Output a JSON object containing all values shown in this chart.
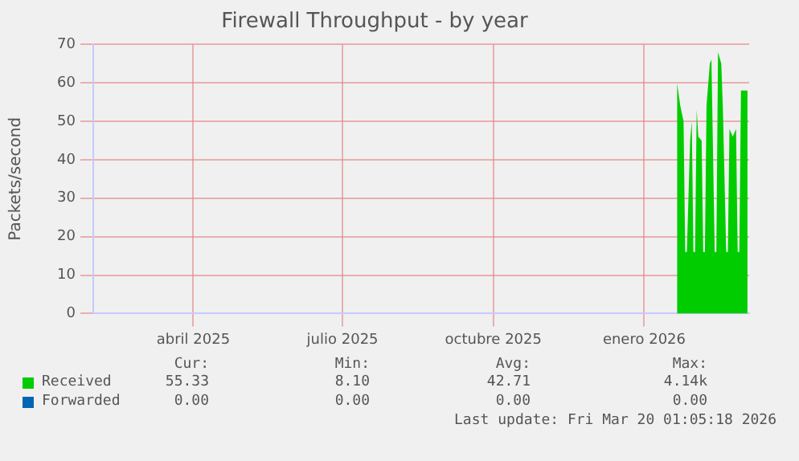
{
  "chart_data": {
    "type": "area",
    "title": "Firewall Throughput - by year",
    "ylabel": "Packets/second",
    "x": [
      "2026-02-04",
      "2026-02-06",
      "2026-02-08",
      "2026-02-09",
      "2026-02-10",
      "2026-02-12",
      "2026-02-13",
      "2026-02-14",
      "2026-02-15",
      "2026-02-16",
      "2026-02-17",
      "2026-02-19",
      "2026-02-20",
      "2026-02-21",
      "2026-02-22",
      "2026-02-24",
      "2026-02-25",
      "2026-02-27",
      "2026-02-28",
      "2026-03-01",
      "2026-03-03",
      "2026-03-04",
      "2026-03-06",
      "2026-03-07",
      "2026-03-08",
      "2026-03-10",
      "2026-03-12",
      "2026-03-13",
      "2026-03-14",
      "2026-03-15",
      "2026-03-17",
      "2026-03-19"
    ],
    "series": [
      {
        "name": "Received",
        "color": "#00cc00",
        "values": [
          60,
          54,
          50,
          16,
          16,
          45,
          50,
          16,
          16,
          53,
          46,
          45,
          16,
          16,
          54,
          65,
          66,
          16,
          16,
          68,
          65,
          53,
          16,
          16,
          48,
          46,
          48,
          16,
          16,
          58,
          58,
          58
        ]
      },
      {
        "name": "Forwarded",
        "color": "#0066b3",
        "values": [
          null,
          null,
          null,
          null,
          null,
          null,
          null,
          null,
          null,
          null,
          null,
          null,
          null,
          null,
          null,
          null,
          null,
          null,
          null,
          null,
          null,
          null,
          null,
          null,
          null,
          null,
          null,
          null,
          null,
          null,
          null,
          null
        ]
      }
    ],
    "xlim": [
      "2025-02-13",
      "2026-03-20"
    ],
    "xticks": [
      {
        "value": "2025-04-15",
        "label": "abril 2025"
      },
      {
        "value": "2025-07-15",
        "label": "julio 2025"
      },
      {
        "value": "2025-10-15",
        "label": "octubre 2025"
      },
      {
        "value": "2026-01-15",
        "label": "enero 2026"
      }
    ],
    "ylim": [
      0,
      70
    ],
    "yticks": [
      0,
      10,
      20,
      30,
      40,
      50,
      60,
      70
    ],
    "grid": true,
    "legend": "bottom",
    "annotations": [
      "Cur:",
      "Min:",
      "Avg:",
      "Max:",
      "55.33",
      "8.10",
      "42.71",
      "4.14k",
      "0.00",
      "0.00",
      "0.00",
      "0.00",
      "Last update: Fri Mar 20 01:05:18 2026"
    ]
  }
}
